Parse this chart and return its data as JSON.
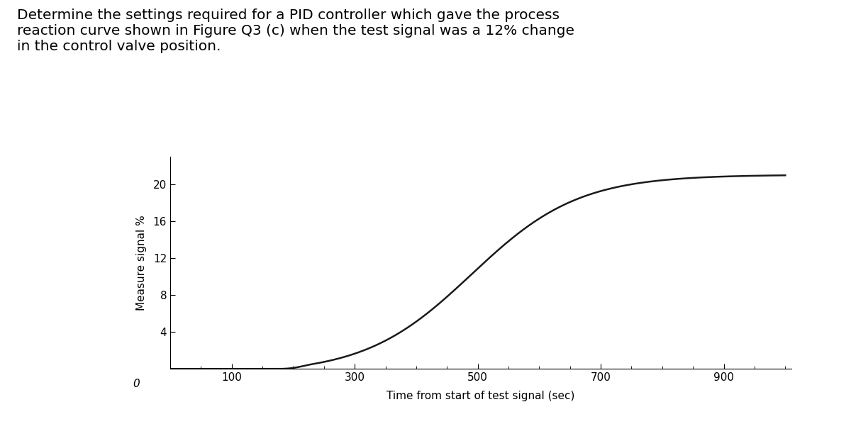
{
  "title_lines": [
    "Determine the settings required for a PID controller which gave the process",
    "reaction curve shown in Figure Q3 (c) when the test signal was a 12% change",
    "in the control valve position."
  ],
  "xlabel": "Time from start of test signal (sec)",
  "ylabel": "Measure signal %",
  "xlim": [
    0,
    1010
  ],
  "ylim": [
    0,
    23
  ],
  "xticks": [
    100,
    300,
    500,
    700,
    900
  ],
  "yticks": [
    4,
    8,
    12,
    16,
    20
  ],
  "curve_color": "#1a1a1a",
  "curve_lw": 1.8,
  "background_color": "#ffffff",
  "sigmoid_L": 21.0,
  "sigmoid_k": 0.0115,
  "sigmoid_x0": 490,
  "title_fontsize": 14.5,
  "axis_label_fontsize": 11,
  "tick_fontsize": 11
}
